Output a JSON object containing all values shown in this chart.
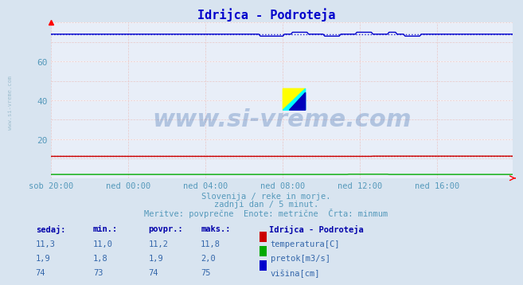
{
  "title": "Idrijca - Podroteja",
  "bg_color": "#d8e4f0",
  "plot_bg_color": "#e8eef8",
  "grid_color_h": "#ffffff",
  "grid_color_v": "#e8c8c8",
  "title_color": "#0000cc",
  "axis_label_color": "#5599bb",
  "text_color": "#5599bb",
  "x_tick_labels": [
    "sob 20:00",
    "ned 00:00",
    "ned 04:00",
    "ned 08:00",
    "ned 12:00",
    "ned 16:00"
  ],
  "x_tick_positions": [
    0,
    48,
    96,
    144,
    192,
    240
  ],
  "ylim": [
    0,
    80
  ],
  "n_points": 288,
  "temp_color": "#cc0000",
  "flow_color": "#00aa00",
  "height_color": "#0000cc",
  "watermark": "www.si-vreme.com",
  "watermark_color": "#3366aa",
  "subtitle1": "Slovenija / reke in morje.",
  "subtitle2": "zadnji dan / 5 minut.",
  "subtitle3": "Meritve: povprečne  Enote: metrične  Črta: minmum",
  "legend_title": "Idrijca - Podroteja",
  "legend_temp": "temperatura[C]",
  "legend_flow": "pretok[m3/s]",
  "legend_height": "višina[cm]",
  "table_headers": [
    "sedaj:",
    "min.:",
    "povpr.:",
    "maks.:"
  ],
  "table_temp": [
    "11,3",
    "11,0",
    "11,2",
    "11,8"
  ],
  "table_flow": [
    "1,9",
    "1,8",
    "1,9",
    "2,0"
  ],
  "table_height": [
    "74",
    "73",
    "74",
    "75"
  ],
  "sidebar_text": "www.si-vreme.com",
  "sidebar_color": "#99bbcc",
  "header_color": "#0000aa",
  "val_color": "#3366aa"
}
